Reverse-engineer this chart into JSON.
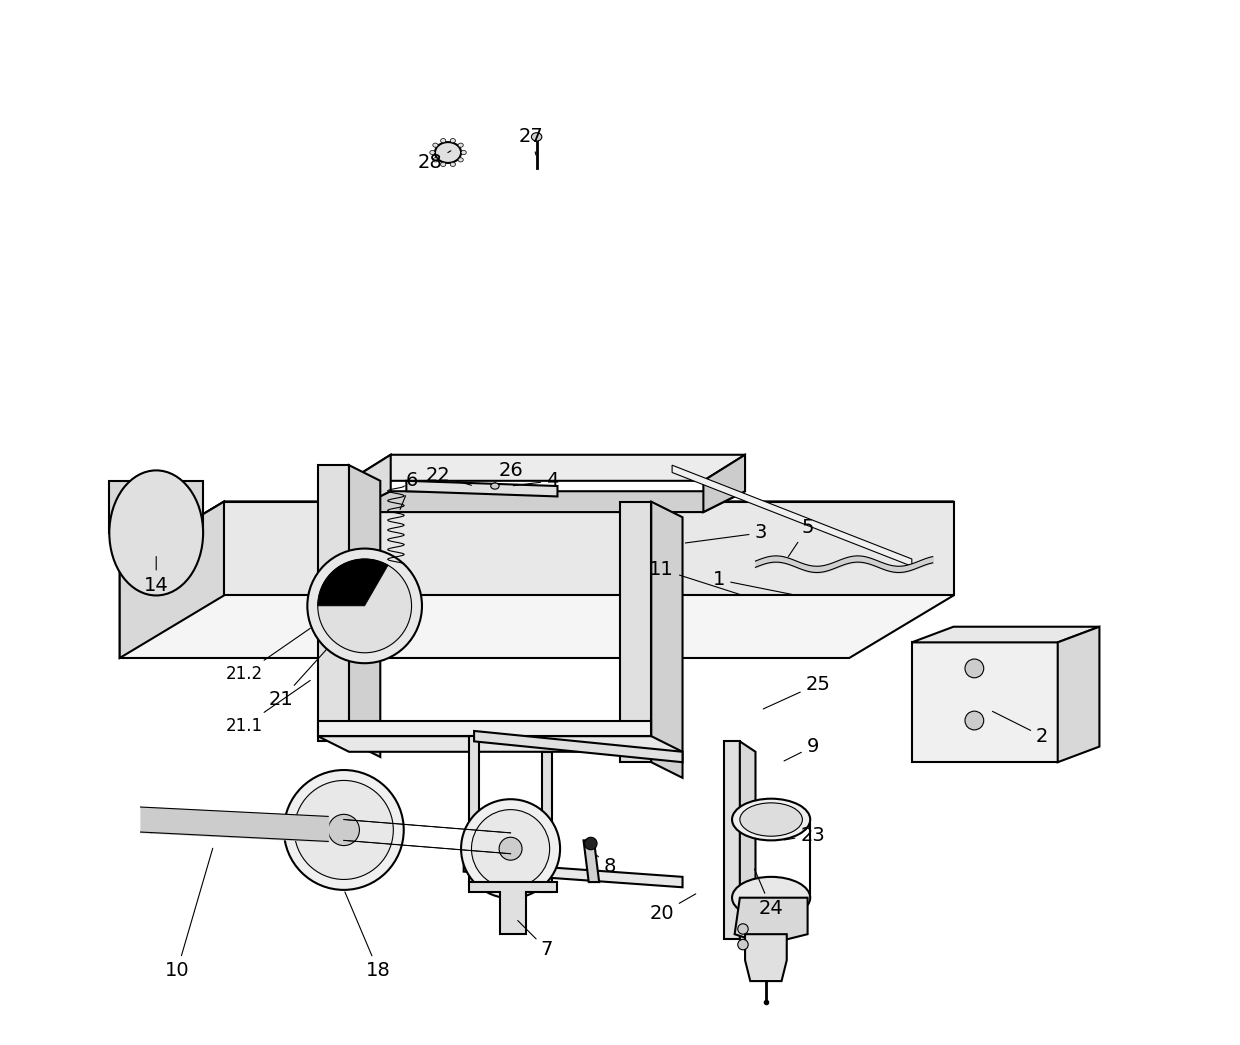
{
  "bg_color": "#ffffff",
  "line_color": "#000000",
  "figure_width": 12.4,
  "figure_height": 10.45,
  "lw_main": 1.5,
  "lw_thin": 0.8
}
